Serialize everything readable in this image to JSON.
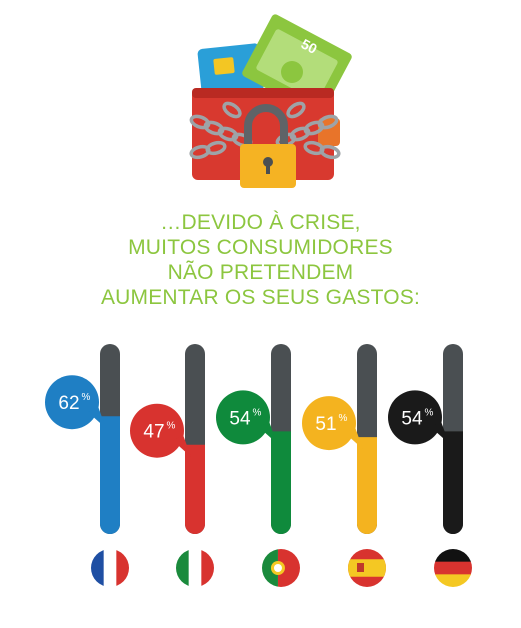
{
  "headline": {
    "lines": [
      "…DEVIDO À CRISE,",
      "MUITOS CONSUMIDORES",
      "NÃO PRETENDEM",
      "AUMENTAR OS SEUS GASTOS:"
    ]
  },
  "illustration": {
    "banknote_value": "50",
    "icons": [
      "wallet-icon",
      "credit-card-icon",
      "banknote-icon",
      "chain-icon",
      "padlock-icon"
    ]
  },
  "colors": {
    "headline": "#8cc63f",
    "track": "#4a4f52"
  },
  "chart_data": {
    "type": "bar",
    "orientation": "vertical",
    "ylim": [
      0,
      100
    ],
    "unit": "%",
    "categories": [
      "France",
      "Italy",
      "Portugal",
      "Spain",
      "Germany"
    ],
    "values": [
      62,
      47,
      54,
      51,
      54
    ],
    "labels": [
      "62",
      "47",
      "54",
      "51",
      "54"
    ],
    "bar_colors": [
      "#1f7fc4",
      "#d8332f",
      "#0f8a3c",
      "#f4b31f",
      "#1a1a1a"
    ],
    "flag_icons": [
      "france-flag-icon",
      "italy-flag-icon",
      "portugal-flag-icon",
      "spain-flag-icon",
      "germany-flag-icon"
    ]
  }
}
